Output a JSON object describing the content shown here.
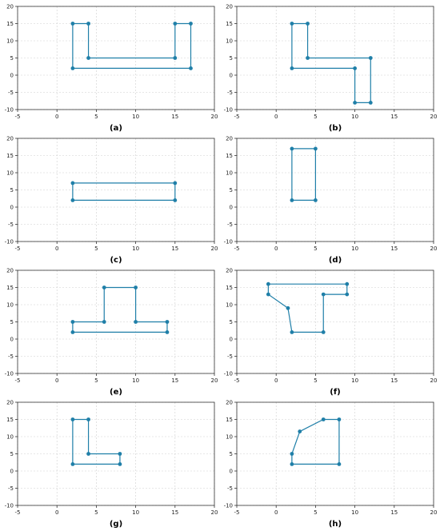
{
  "colors": {
    "line": "#1f7fa8",
    "grid": "#cfcfcf",
    "axis": "#333333"
  },
  "chart_data": [
    {
      "label": "(a)",
      "type": "line",
      "xlim": [
        -5,
        20
      ],
      "ylim": [
        -10,
        20
      ],
      "xticks": [
        -5,
        0,
        5,
        10,
        15,
        20
      ],
      "yticks": [
        -10,
        -5,
        0,
        5,
        10,
        15,
        20
      ],
      "grid": true,
      "points": [
        [
          2,
          2
        ],
        [
          2,
          15
        ],
        [
          4,
          15
        ],
        [
          4,
          5
        ],
        [
          15,
          5
        ],
        [
          15,
          15
        ],
        [
          17,
          15
        ],
        [
          17,
          2
        ],
        [
          2,
          2
        ]
      ]
    },
    {
      "label": "(b)",
      "type": "line",
      "xlim": [
        -5,
        20
      ],
      "ylim": [
        -10,
        20
      ],
      "xticks": [
        -5,
        0,
        5,
        10,
        15,
        20
      ],
      "yticks": [
        -10,
        -5,
        0,
        5,
        10,
        15,
        20
      ],
      "grid": true,
      "points": [
        [
          2,
          2
        ],
        [
          2,
          15
        ],
        [
          4,
          15
        ],
        [
          4,
          5
        ],
        [
          12,
          5
        ],
        [
          12,
          -8
        ],
        [
          10,
          -8
        ],
        [
          10,
          2
        ],
        [
          2,
          2
        ]
      ]
    },
    {
      "label": "(c)",
      "type": "line",
      "xlim": [
        -5,
        20
      ],
      "ylim": [
        -10,
        20
      ],
      "xticks": [
        -5,
        0,
        5,
        10,
        15,
        20
      ],
      "yticks": [
        -10,
        -5,
        0,
        5,
        10,
        15,
        20
      ],
      "grid": true,
      "points": [
        [
          2,
          2
        ],
        [
          2,
          7
        ],
        [
          15,
          7
        ],
        [
          15,
          2
        ],
        [
          2,
          2
        ]
      ]
    },
    {
      "label": "(d)",
      "type": "line",
      "xlim": [
        -5,
        20
      ],
      "ylim": [
        -10,
        20
      ],
      "xticks": [
        -5,
        0,
        5,
        10,
        15,
        20
      ],
      "yticks": [
        -10,
        -5,
        0,
        5,
        10,
        15,
        20
      ],
      "grid": true,
      "points": [
        [
          2,
          2
        ],
        [
          2,
          17
        ],
        [
          5,
          17
        ],
        [
          5,
          2
        ],
        [
          2,
          2
        ]
      ]
    },
    {
      "label": "(e)",
      "type": "line",
      "xlim": [
        -5,
        20
      ],
      "ylim": [
        -10,
        20
      ],
      "xticks": [
        -5,
        0,
        5,
        10,
        15,
        20
      ],
      "yticks": [
        -10,
        -5,
        0,
        5,
        10,
        15,
        20
      ],
      "grid": true,
      "points": [
        [
          2,
          2
        ],
        [
          2,
          5
        ],
        [
          6,
          5
        ],
        [
          6,
          15
        ],
        [
          10,
          15
        ],
        [
          10,
          5
        ],
        [
          14,
          5
        ],
        [
          14,
          2
        ],
        [
          2,
          2
        ]
      ]
    },
    {
      "label": "(f)",
      "type": "line",
      "xlim": [
        -5,
        20
      ],
      "ylim": [
        -10,
        20
      ],
      "xticks": [
        -5,
        0,
        5,
        10,
        15,
        20
      ],
      "yticks": [
        -10,
        -5,
        0,
        5,
        10,
        15,
        20
      ],
      "grid": true,
      "points": [
        [
          -1,
          16
        ],
        [
          9,
          16
        ],
        [
          9,
          13
        ],
        [
          6,
          13
        ],
        [
          6,
          2
        ],
        [
          2,
          2
        ],
        [
          1.5,
          9
        ],
        [
          -1,
          13
        ],
        [
          -1,
          16
        ]
      ]
    },
    {
      "label": "(g)",
      "type": "line",
      "xlim": [
        -5,
        20
      ],
      "ylim": [
        -10,
        20
      ],
      "xticks": [
        -5,
        0,
        5,
        10,
        15,
        20
      ],
      "yticks": [
        -10,
        -5,
        0,
        5,
        10,
        15,
        20
      ],
      "grid": true,
      "points": [
        [
          2,
          2
        ],
        [
          2,
          15
        ],
        [
          4,
          15
        ],
        [
          4,
          5
        ],
        [
          8,
          5
        ],
        [
          8,
          2
        ],
        [
          2,
          2
        ]
      ]
    },
    {
      "label": "(h)",
      "type": "line",
      "xlim": [
        -5,
        20
      ],
      "ylim": [
        -10,
        20
      ],
      "xticks": [
        -5,
        0,
        5,
        10,
        15,
        20
      ],
      "yticks": [
        -10,
        -5,
        0,
        5,
        10,
        15,
        20
      ],
      "grid": true,
      "points": [
        [
          2,
          2
        ],
        [
          2,
          5
        ],
        [
          3,
          11.5
        ],
        [
          6,
          15
        ],
        [
          8,
          15
        ],
        [
          8,
          2
        ],
        [
          2,
          2
        ]
      ]
    }
  ]
}
